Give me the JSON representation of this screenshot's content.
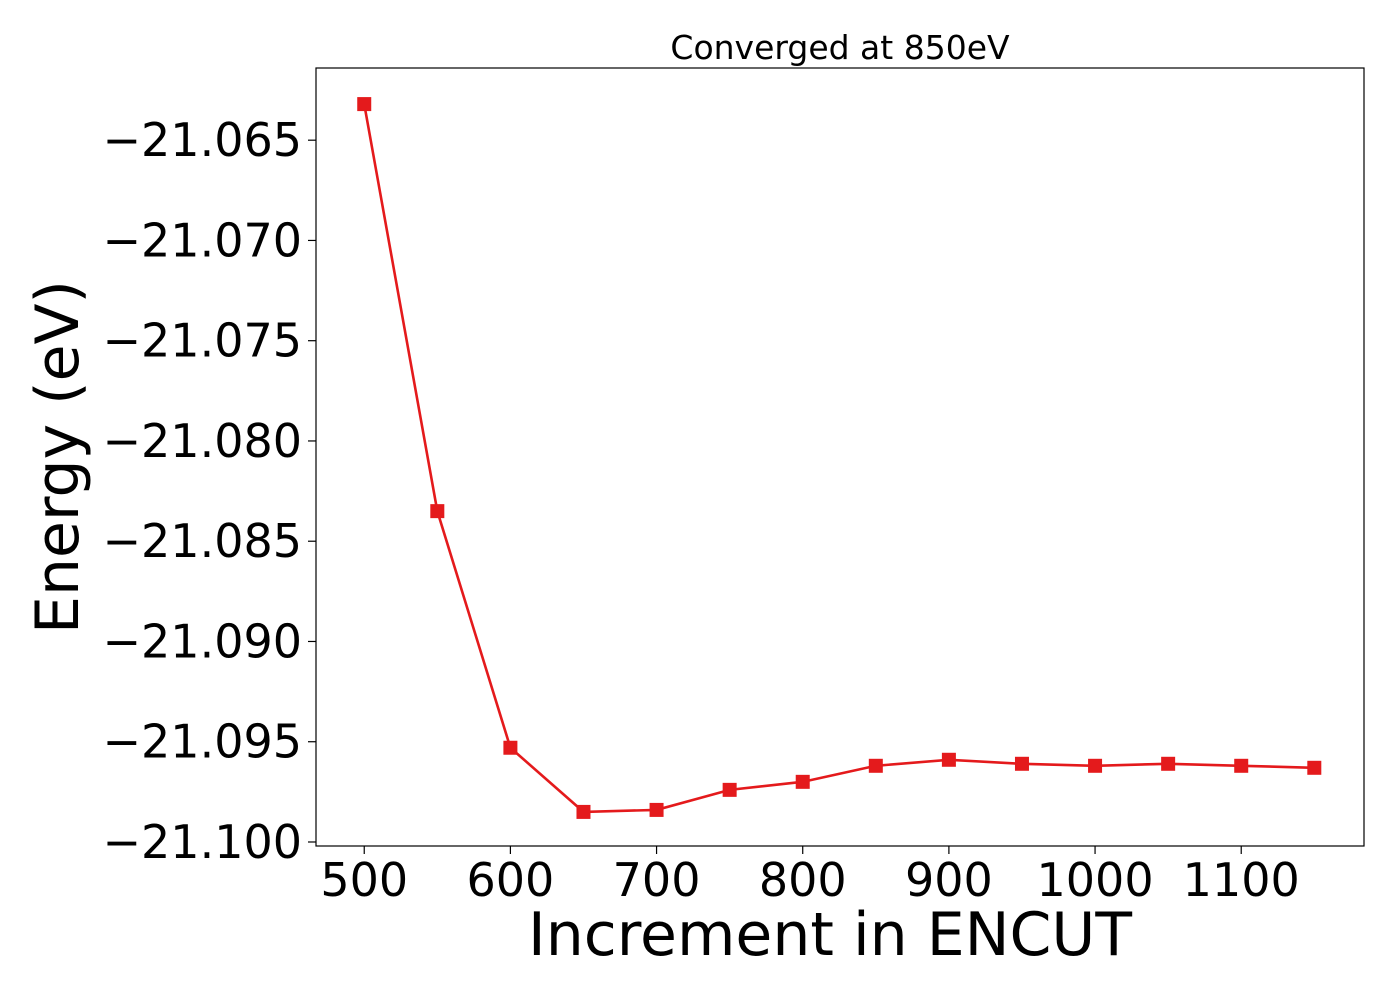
{
  "chart_data": {
    "type": "line",
    "title": "Converged at 850eV",
    "xlabel": "Increment in ENCUT",
    "ylabel": "Energy (eV)",
    "x": [
      500,
      550,
      600,
      650,
      700,
      750,
      800,
      850,
      900,
      950,
      1000,
      1050,
      1100,
      1150
    ],
    "series": [
      {
        "values": [
          -21.0632,
          -21.0835,
          -21.0953,
          -21.0985,
          -21.0984,
          -21.0974,
          -21.097,
          -21.0962,
          -21.0959,
          -21.0961,
          -21.0962,
          -21.0961,
          -21.0962,
          -21.0963
        ],
        "color": "#e41a1c",
        "marker": "square"
      }
    ],
    "xlim": [
      467,
      1184
    ],
    "ylim": [
      -21.1002,
      -21.0614
    ],
    "xticks": [
      500,
      600,
      700,
      800,
      900,
      1000,
      1100
    ],
    "xtick_labels": [
      "500",
      "600",
      "700",
      "800",
      "900",
      "1000",
      "1100"
    ],
    "yticks": [
      -21.065,
      -21.07,
      -21.075,
      -21.08,
      -21.085,
      -21.09,
      -21.095,
      -21.1
    ],
    "ytick_labels": [
      "−21.065",
      "−21.070",
      "−21.075",
      "−21.080",
      "−21.085",
      "−21.090",
      "−21.095",
      "−21.100"
    ],
    "grid": false,
    "legend": "none"
  }
}
